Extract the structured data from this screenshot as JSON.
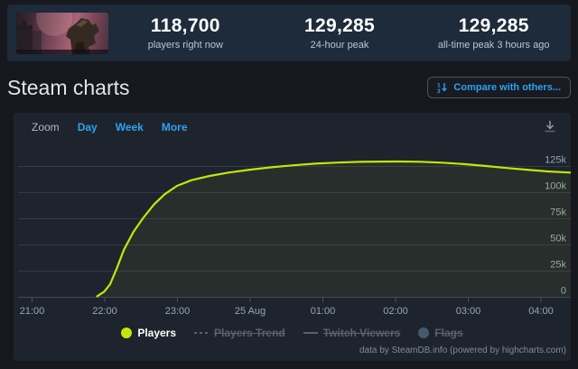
{
  "header": {
    "thumbnail": "armored-core-vi-capsule",
    "stats": [
      {
        "value": "118,700",
        "label": "players right now"
      },
      {
        "value": "129,285",
        "label": "24-hour peak"
      },
      {
        "value": "129,285",
        "label": "all-time peak 3 hours ago"
      }
    ]
  },
  "section": {
    "title": "Steam charts",
    "compare_button": "Compare with others..."
  },
  "toolbar": {
    "zoom_label": "Zoom",
    "ranges": [
      "Day",
      "Week",
      "More"
    ]
  },
  "chart_data": {
    "type": "area",
    "title": "",
    "x_unit": "hours since 21:00 (24 Aug)",
    "x_axis": {
      "ticks": [
        {
          "h": 0,
          "label": "21:00"
        },
        {
          "h": 1,
          "label": "22:00"
        },
        {
          "h": 2,
          "label": "23:00"
        },
        {
          "h": 3,
          "label": "25 Aug"
        },
        {
          "h": 4,
          "label": "01:00"
        },
        {
          "h": 5,
          "label": "02:00"
        },
        {
          "h": 6,
          "label": "03:00"
        },
        {
          "h": 7,
          "label": "04:00"
        }
      ]
    },
    "y_axis": {
      "ticks": [
        {
          "value": 0,
          "label": "0"
        },
        {
          "value": 25000,
          "label": "25k"
        },
        {
          "value": 50000,
          "label": "50k"
        },
        {
          "value": 75000,
          "label": "75k"
        },
        {
          "value": 100000,
          "label": "100k"
        },
        {
          "value": 125000,
          "label": "125k"
        }
      ],
      "ylim": [
        0,
        141000
      ]
    },
    "series": [
      {
        "name": "Players",
        "color": "#c4e50b",
        "points": [
          [
            0.9,
            500
          ],
          [
            1.0,
            5000
          ],
          [
            1.08,
            12000
          ],
          [
            1.17,
            27000
          ],
          [
            1.27,
            45000
          ],
          [
            1.4,
            62000
          ],
          [
            1.53,
            75000
          ],
          [
            1.68,
            88000
          ],
          [
            1.83,
            98000
          ],
          [
            2.0,
            106000
          ],
          [
            2.2,
            111500
          ],
          [
            2.45,
            115500
          ],
          [
            2.7,
            118600
          ],
          [
            3.0,
            121500
          ],
          [
            3.3,
            123800
          ],
          [
            3.6,
            125700
          ],
          [
            3.9,
            127200
          ],
          [
            4.2,
            128300
          ],
          [
            4.5,
            129000
          ],
          [
            4.8,
            129250
          ],
          [
            5.05,
            129285
          ],
          [
            5.35,
            129050
          ],
          [
            5.65,
            128200
          ],
          [
            5.95,
            126800
          ],
          [
            6.25,
            125000
          ],
          [
            6.55,
            123000
          ],
          [
            6.85,
            121200
          ],
          [
            7.1,
            119800
          ],
          [
            7.42,
            118700
          ]
        ]
      }
    ],
    "legend": [
      {
        "label": "Players",
        "marker": "circle",
        "color": "#c4e50b",
        "active": true
      },
      {
        "label": "Players Trend",
        "marker": "dashed-line",
        "color": "#59616b",
        "active": false
      },
      {
        "label": "Twitch Viewers",
        "marker": "line",
        "color": "#59616b",
        "active": false
      },
      {
        "label": "Flags",
        "marker": "circle",
        "color": "#46586c",
        "active": false
      }
    ],
    "credits": "data by SteamDB.info (powered by highcharts.com)",
    "grid": true,
    "legend_position": "bottom-center"
  },
  "colors": {
    "accent_blue": "#2aa3f0",
    "players_line": "#c4e50b",
    "panel_bg": "#1e242d",
    "topbar_bg": "#1d2b3a",
    "page_bg": "#16181e"
  }
}
